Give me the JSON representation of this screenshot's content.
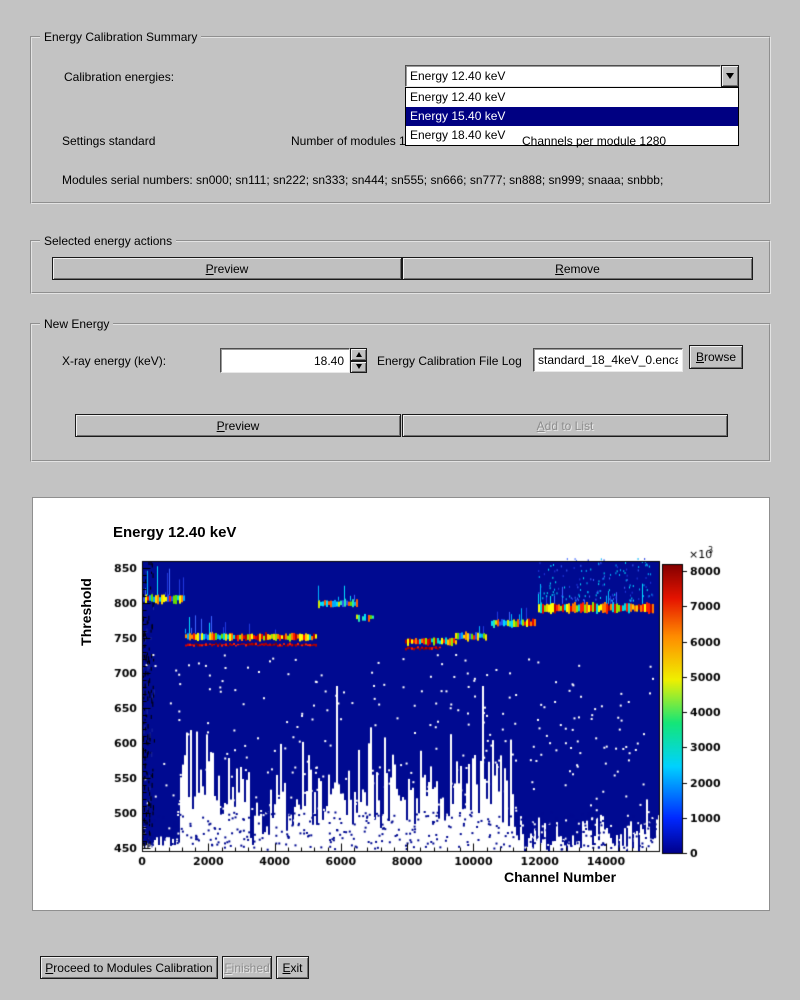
{
  "summary_group": {
    "title": "Energy Calibration Summary",
    "calibration_energies_label": "Calibration energies:",
    "combobox": {
      "selected": "Energy 12.40 keV"
    },
    "dropdown": {
      "items": [
        "Energy 12.40 keV",
        "Energy 15.40 keV",
        "Energy 18.40 keV"
      ],
      "highlighted_index": 1
    },
    "settings_label": "Settings standard",
    "modules_label": "Number of modules 12",
    "channels_label": "Channels per module 1280",
    "serials_label": "Modules serial numbers: sn000; sn111; sn222; sn333; sn444; sn555; sn666; sn777; sn888; sn999; snaaa; snbbb;"
  },
  "actions_group": {
    "title": "Selected energy actions",
    "preview_button": {
      "label": "Preview",
      "mnemonic": "P"
    },
    "remove_button": {
      "label": "Remove",
      "mnemonic": "R"
    }
  },
  "new_energy_group": {
    "title": "New Energy",
    "xray_label": "X-ray energy (keV):",
    "energy_value": "18.40",
    "file_log_label": "Energy Calibration File Log",
    "file_value": "standard_18_4keV_0.encal",
    "browse_button": {
      "label": "Browse",
      "mnemonic": "B"
    },
    "preview_button": {
      "label": "Preview",
      "mnemonic": "P"
    },
    "add_button": {
      "label": "Add to List",
      "mnemonic": "A"
    }
  },
  "footer": {
    "proceed_button": {
      "label": "Proceed to Modules Calibration",
      "mnemonic": "P"
    },
    "finished_button": {
      "label": "Finished",
      "mnemonic": "F"
    },
    "exit_button": {
      "label": "Exit",
      "mnemonic": "E"
    }
  },
  "chart_data": {
    "type": "heatmap",
    "title": "Energy 12.40 keV",
    "xlabel": "Channel Number",
    "ylabel": "Threshold",
    "x_range": [
      0,
      15600
    ],
    "y_range": [
      445,
      860
    ],
    "x_ticks": [
      0,
      2000,
      4000,
      6000,
      8000,
      10000,
      12000,
      14000
    ],
    "y_ticks": [
      450,
      500,
      550,
      600,
      650,
      700,
      750,
      800,
      850
    ],
    "colorbar": {
      "ticks": [
        0,
        1000,
        2000,
        3000,
        4000,
        5000,
        6000,
        7000,
        8000
      ],
      "axis_max": 8200,
      "multiplier_base": "×10",
      "multiplier_exp": "3"
    },
    "bands": [
      {
        "c0": 40,
        "c1": 1250,
        "t": 806,
        "style": "mixed",
        "h": 7,
        "spikes": 0.22,
        "spike_len": 26
      },
      {
        "c0": 1310,
        "c1": 2650,
        "t": 752,
        "style": "mixed",
        "h": 6,
        "spikes": 0.18,
        "spike_len": 16
      },
      {
        "c0": 2650,
        "c1": 5250,
        "t": 751,
        "style": "hot",
        "h": 6,
        "spikes": 0.12,
        "spike_len": 12
      },
      {
        "c0": 1310,
        "c1": 5250,
        "t": 740,
        "style": "thinred",
        "h": 2,
        "spikes": 0,
        "spike_len": 0
      },
      {
        "c0": 5330,
        "c1": 6480,
        "t": 799,
        "style": "cool",
        "h": 6,
        "spikes": 0.15,
        "spike_len": 12
      },
      {
        "c0": 6480,
        "c1": 6950,
        "t": 779,
        "style": "cool",
        "h": 5,
        "spikes": 0.1,
        "spike_len": 8,
        "sparse": 0.3
      },
      {
        "c0": 7950,
        "c1": 9450,
        "t": 745,
        "style": "hot",
        "h": 6,
        "spikes": 0.12,
        "spike_len": 10
      },
      {
        "c0": 7950,
        "c1": 9000,
        "t": 735,
        "style": "thinred",
        "h": 2,
        "spikes": 0,
        "spike_len": 0
      },
      {
        "c0": 9450,
        "c1": 10400,
        "t": 752,
        "style": "mixed",
        "h": 6,
        "spikes": 0.15,
        "spike_len": 10
      },
      {
        "c0": 10550,
        "c1": 11480,
        "t": 771,
        "style": "cool",
        "h": 6,
        "spikes": 0.15,
        "spike_len": 10
      },
      {
        "c0": 11480,
        "c1": 11880,
        "t": 771,
        "style": "hot",
        "h": 6,
        "spikes": 0.12,
        "spike_len": 10
      },
      {
        "c0": 11950,
        "c1": 15420,
        "t": 793,
        "style": "hot",
        "h": 8,
        "spikes": 0.2,
        "spike_len": 18,
        "scatter": 150
      }
    ],
    "palettes": {
      "hot": [
        "#ff1e00",
        "#e00000",
        "#b00000",
        "#ff7800",
        "#ffc800",
        "#ffff00",
        "#96e600",
        "#00dcdc"
      ],
      "cool": [
        "#00dcff",
        "#00dcff",
        "#00aaff",
        "#2850f0",
        "#28e6b4",
        "#64dc00",
        "#d2e600",
        "#ff5a00"
      ],
      "mixed": [
        "#ff1e00",
        "#ff8c00",
        "#ffdc00",
        "#ffff00",
        "#64dc00",
        "#00dcdc",
        "#00aaff",
        "#2850f0"
      ],
      "thinred": [
        "#b00000",
        "#d20000",
        "#820000",
        "#ff1e00"
      ],
      "spike": [
        "#2038e0",
        "#00b4ff",
        "#3c64ff",
        "#00e0ff"
      ],
      "background": "#000a91",
      "frame": "#000000"
    },
    "colorbar_stops": [
      [
        0,
        "#00008c"
      ],
      [
        0.12,
        "#0028ff"
      ],
      [
        0.3,
        "#00d2ff"
      ],
      [
        0.45,
        "#14e678"
      ],
      [
        0.6,
        "#f0f000"
      ],
      [
        0.75,
        "#ff8c00"
      ],
      [
        0.88,
        "#e61400"
      ],
      [
        1,
        "#820000"
      ]
    ]
  }
}
